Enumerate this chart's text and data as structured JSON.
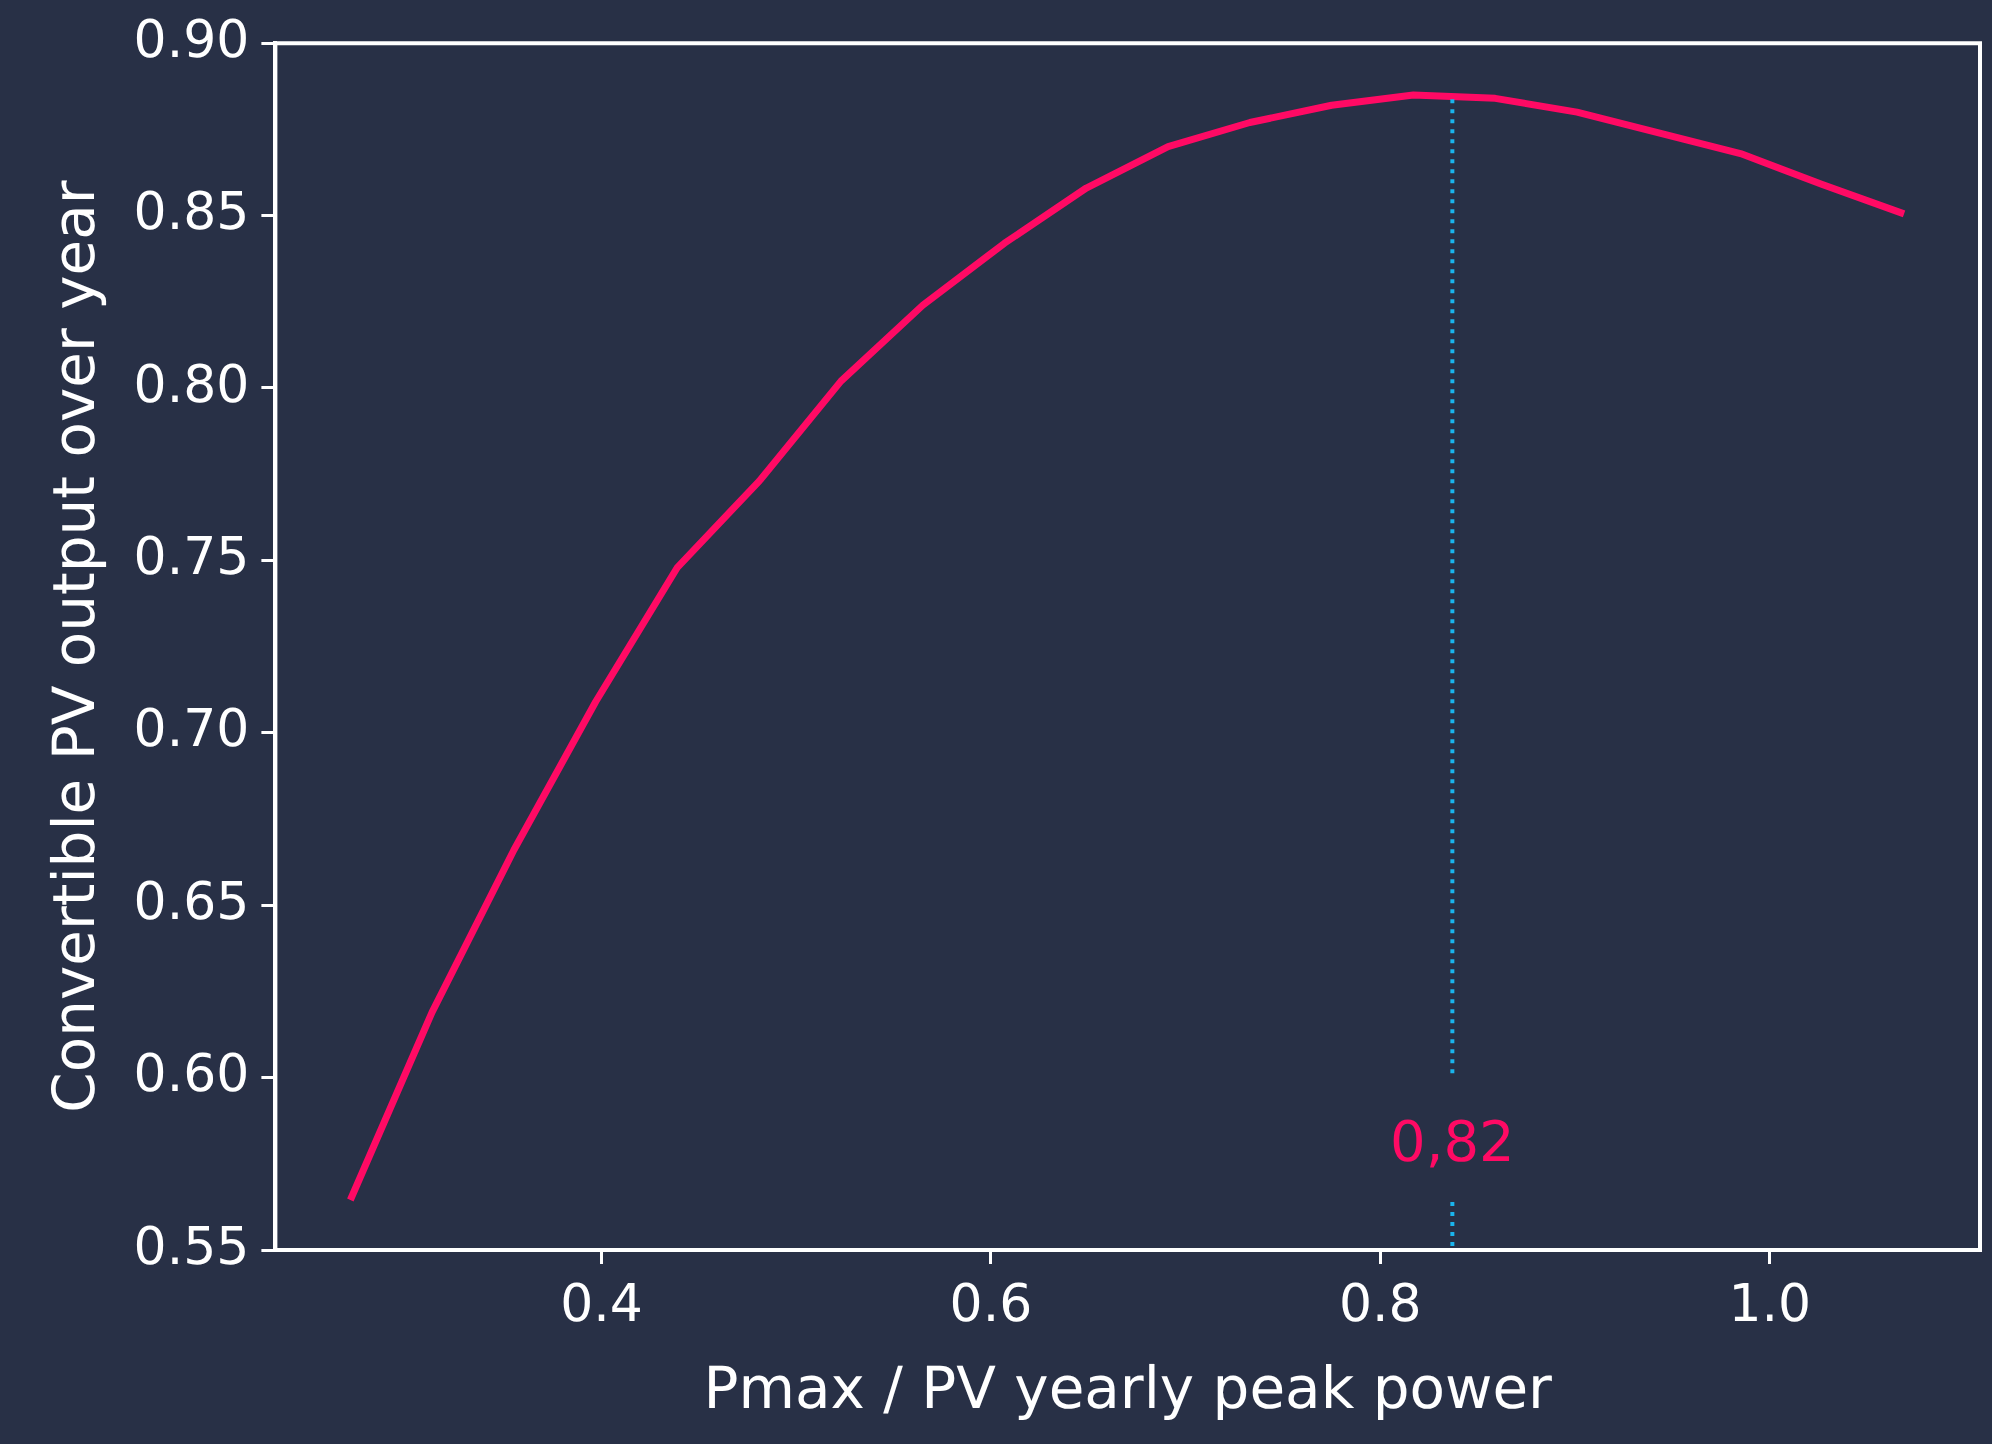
{
  "chart_data": {
    "type": "line",
    "xlabel": "Pmax / PV yearly peak power",
    "ylabel": "Convertible PV output over year",
    "x": [
      0.271,
      0.313,
      0.355,
      0.397,
      0.439,
      0.481,
      0.523,
      0.565,
      0.607,
      0.649,
      0.691,
      0.733,
      0.775,
      0.817,
      0.859,
      0.901,
      0.943,
      0.985,
      1.027,
      1.069
    ],
    "series": [
      {
        "color": "#ff0a64",
        "values": [
          0.5645,
          0.619,
          0.666,
          0.709,
          0.748,
          0.773,
          0.802,
          0.824,
          0.842,
          0.858,
          0.87,
          0.877,
          0.882,
          0.885,
          0.884,
          0.88,
          0.874,
          0.868,
          0.859,
          0.8505
        ]
      }
    ],
    "xlim": [
      0.2325,
      1.108
    ],
    "xticks": [
      {
        "value": 0.4,
        "label": "0.4"
      },
      {
        "value": 0.6,
        "label": "0.6"
      },
      {
        "value": 0.8,
        "label": "0.8"
      },
      {
        "value": 1.0,
        "label": "1.0"
      }
    ],
    "ylim": [
      0.55,
      0.9
    ],
    "yticks": [
      {
        "value": 0.55,
        "label": "0.55"
      },
      {
        "value": 0.6,
        "label": "0.60"
      },
      {
        "value": 0.65,
        "label": "0.65"
      },
      {
        "value": 0.7,
        "label": "0.70"
      },
      {
        "value": 0.75,
        "label": "0.75"
      },
      {
        "value": 0.8,
        "label": "0.80"
      },
      {
        "value": 0.85,
        "label": "0.85"
      },
      {
        "value": 0.9,
        "label": "0.90"
      }
    ],
    "ref_lines": [
      {
        "axis": "x",
        "value": 0.837,
        "color": "#1ab4ec",
        "line_style": "dotted"
      }
    ],
    "annotations": [
      "0,82"
    ],
    "grid": false,
    "legend": false,
    "marker": "none",
    "line_style": "solid"
  }
}
